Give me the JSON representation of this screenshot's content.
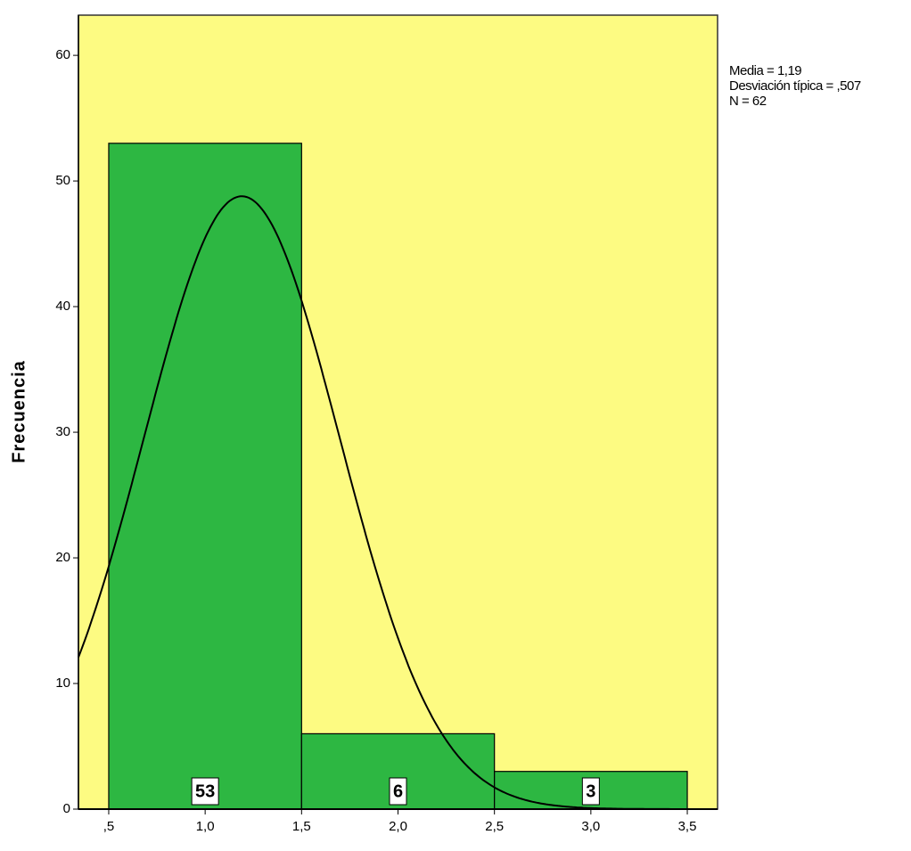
{
  "chart_data": {
    "type": "histogram",
    "ylabel": "Frecuencia",
    "bins": [
      0.5,
      1.5,
      2.5,
      3.5
    ],
    "values": [
      53,
      6,
      3
    ],
    "color": "#2db742",
    "background": "#fdfb82",
    "xlim": [
      0.343,
      3.657
    ],
    "ylim": [
      0,
      63.2
    ],
    "xticks": [
      {
        "value": 0.5,
        "label": ",5"
      },
      {
        "value": 1.0,
        "label": "1,0"
      },
      {
        "value": 1.5,
        "label": "1,5"
      },
      {
        "value": 2.0,
        "label": "2,0"
      },
      {
        "value": 2.5,
        "label": "2,5"
      },
      {
        "value": 3.0,
        "label": "3,0"
      },
      {
        "value": 3.5,
        "label": "3,5"
      }
    ],
    "yticks": [
      0,
      10,
      20,
      30,
      40,
      50,
      60
    ],
    "normal_curve": {
      "mean": 1.19,
      "sd": 0.507,
      "n": 62
    },
    "stats": [
      "Media = 1,19",
      "Desviación típica = ,507",
      "N = 62"
    ]
  }
}
